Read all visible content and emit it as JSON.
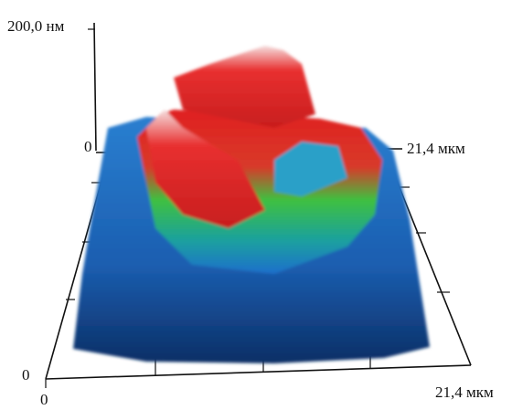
{
  "axes": {
    "z_top": "200,0 нм",
    "z_zero": "0",
    "y_end": "21,4 мкм",
    "origin_z": "0",
    "origin_x": "0",
    "x_end": "21,4 мкм"
  }
}
